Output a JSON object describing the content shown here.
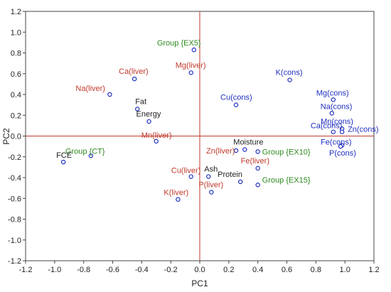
{
  "chart_data": {
    "type": "scatter",
    "title": "",
    "xlabel": "PC1",
    "ylabel": "PC2",
    "xlim": [
      -1.2,
      1.2
    ],
    "ylim": [
      -1.2,
      1.2
    ],
    "xticks": [
      "-1.2",
      "-1.0",
      "-0.8",
      "-0.6",
      "-0.4",
      "-0.2",
      "0.0",
      "0.2",
      "0.4",
      "0.6",
      "0.8",
      "1.0",
      "1.2"
    ],
    "yticks": [
      "1.2",
      "1.0",
      "0.8",
      "0.6",
      "0.4",
      "0.2",
      "0.0",
      "-0.2",
      "-0.4",
      "-0.6",
      "-0.8",
      "-1.0",
      "-1.2"
    ],
    "grid": false,
    "reference_lines": {
      "x": 0,
      "y": 0,
      "color": "#c0392b"
    },
    "colors": {
      "point": "#1f2fbf",
      "cons": "#1f2fbf",
      "liver": "#c0392b",
      "group": "#2e8b1f",
      "other": "#222222"
    },
    "points": [
      {
        "label": "Group {EX5}",
        "category": "group",
        "x": -0.04,
        "y": 0.83
      },
      {
        "label": "Mg(liver)",
        "category": "liver",
        "x": -0.06,
        "y": 0.61
      },
      {
        "label": "Ca(liver)",
        "category": "liver",
        "x": -0.45,
        "y": 0.55
      },
      {
        "label": "Na(liver)",
        "category": "liver",
        "x": -0.62,
        "y": 0.4
      },
      {
        "label": "K(cons)",
        "category": "cons",
        "x": 0.62,
        "y": 0.54
      },
      {
        "label": "Mg(cons)",
        "category": "cons",
        "x": 0.92,
        "y": 0.35
      },
      {
        "label": "Na(cons)",
        "category": "cons",
        "x": 0.91,
        "y": 0.22
      },
      {
        "label": "Cu(cons)",
        "category": "cons",
        "x": 0.25,
        "y": 0.3
      },
      {
        "label": "Fat",
        "category": "other",
        "x": -0.43,
        "y": 0.26
      },
      {
        "label": "Energy",
        "category": "other",
        "x": -0.35,
        "y": 0.14
      },
      {
        "label": "Mn(cons)",
        "category": "cons",
        "x": 0.98,
        "y": 0.07
      },
      {
        "label": "Ca(cons)",
        "category": "cons",
        "x": 0.92,
        "y": 0.04
      },
      {
        "label": "Zn(cons)",
        "category": "cons",
        "x": 0.98,
        "y": 0.04
      },
      {
        "label": "Fe(cons)",
        "category": "cons",
        "x": 0.98,
        "y": -0.09
      },
      {
        "label": "P(cons)",
        "category": "cons",
        "x": 0.97,
        "y": -0.1
      },
      {
        "label": "Mn(liver)",
        "category": "liver",
        "x": -0.3,
        "y": -0.05
      },
      {
        "label": "Moisture",
        "category": "other",
        "x": 0.31,
        "y": -0.13
      },
      {
        "label": "Zn(liver)",
        "category": "liver",
        "x": 0.25,
        "y": -0.14
      },
      {
        "label": "Group {EX10}",
        "category": "group",
        "x": 0.4,
        "y": -0.15
      },
      {
        "label": "Group {CT}",
        "category": "group",
        "x": -0.75,
        "y": -0.19
      },
      {
        "label": "FCE",
        "category": "other",
        "x": -0.94,
        "y": -0.25
      },
      {
        "label": "Fe(liver)",
        "category": "liver",
        "x": 0.4,
        "y": -0.31
      },
      {
        "label": "Cu(liver)",
        "category": "liver",
        "x": -0.06,
        "y": -0.39
      },
      {
        "label": "Ash",
        "category": "other",
        "x": 0.06,
        "y": -0.39
      },
      {
        "label": "Protein",
        "category": "other",
        "x": 0.28,
        "y": -0.44
      },
      {
        "label": "Group {EX15}",
        "category": "group",
        "x": 0.4,
        "y": -0.47
      },
      {
        "label": "P(liver)",
        "category": "liver",
        "x": 0.08,
        "y": -0.54
      },
      {
        "label": "K(liver)",
        "category": "liver",
        "x": -0.15,
        "y": -0.61
      }
    ]
  }
}
